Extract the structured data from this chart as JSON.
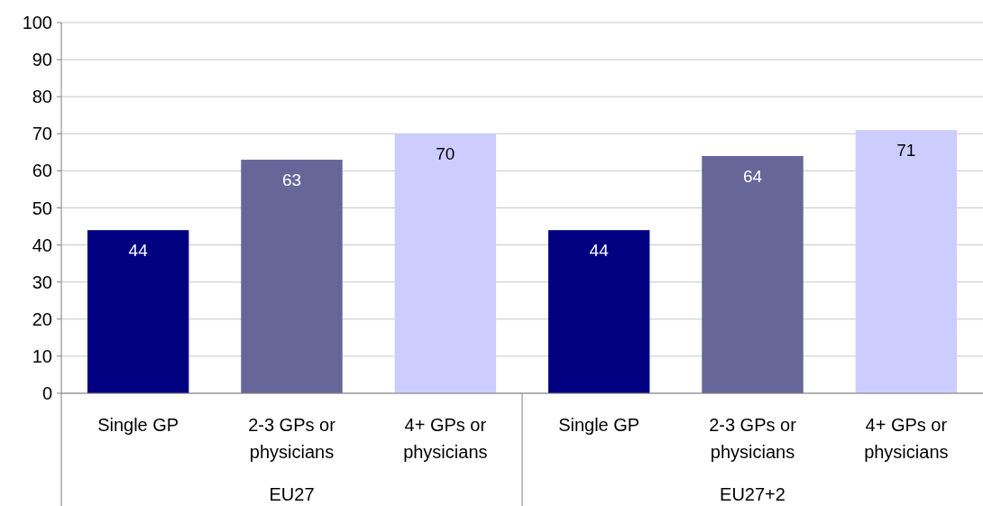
{
  "chart_data": {
    "type": "bar",
    "categories": [
      "Single GP",
      "2-3 GPs or physicians",
      "4+ GPs or physicians",
      "Single GP",
      "2-3 GPs or physicians",
      "4+ GPs or physicians"
    ],
    "values": [
      44,
      63,
      70,
      44,
      64,
      71
    ],
    "colors": [
      "#000080",
      "#666699",
      "#ccccff",
      "#000080",
      "#666699",
      "#ccccff"
    ],
    "ylim": [
      0,
      100
    ],
    "yticks": [
      0,
      10,
      20,
      30,
      40,
      50,
      60,
      70,
      80,
      90,
      100
    ],
    "grid": "y",
    "data_labels": true,
    "annotations": [
      "EU27",
      "EU27+2"
    ]
  }
}
